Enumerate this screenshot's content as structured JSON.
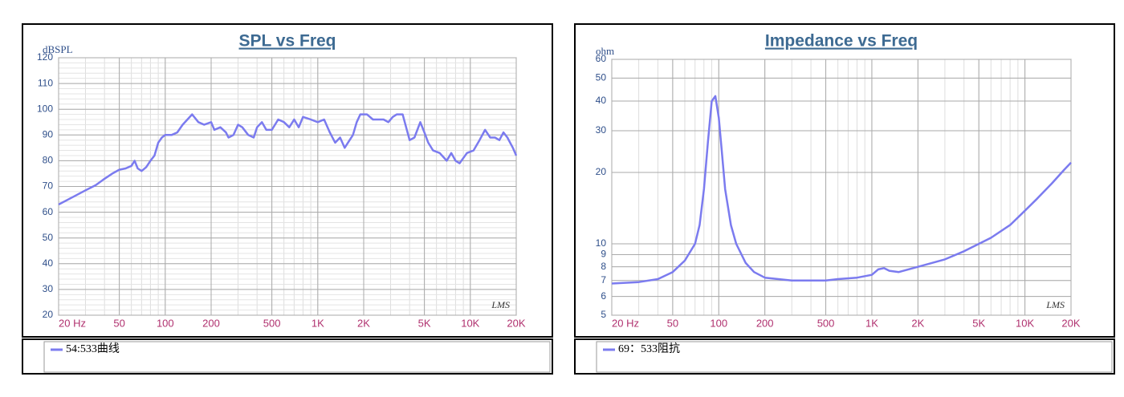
{
  "chart_data": [
    {
      "type": "line",
      "title": "SPL vs Freq",
      "ylabel": "dBSPL",
      "annotation": "LMS",
      "xlog": true,
      "ylog": false,
      "grid": true,
      "xlim": [
        20,
        20000
      ],
      "xticks": [
        {
          "value": 20,
          "label": "20 Hz"
        },
        50,
        100,
        200,
        500,
        {
          "value": 1000,
          "label": "1K"
        },
        {
          "value": 2000,
          "label": "2K"
        },
        {
          "value": 5000,
          "label": "5K"
        },
        {
          "value": 10000,
          "label": "10K"
        },
        {
          "value": 20000,
          "label": "20K"
        }
      ],
      "ylim": [
        20,
        120
      ],
      "yticks": [
        20,
        30,
        40,
        50,
        60,
        70,
        80,
        90,
        100,
        110,
        120
      ],
      "x": [
        20,
        25,
        30,
        35,
        40,
        45,
        50,
        55,
        60,
        63,
        66,
        70,
        75,
        80,
        85,
        90,
        95,
        100,
        110,
        120,
        130,
        150,
        165,
        180,
        200,
        210,
        230,
        250,
        260,
        280,
        300,
        320,
        350,
        380,
        400,
        430,
        460,
        500,
        550,
        600,
        650,
        700,
        750,
        800,
        900,
        1000,
        1100,
        1200,
        1300,
        1400,
        1500,
        1700,
        1800,
        1900,
        2100,
        2300,
        2500,
        2700,
        2900,
        3100,
        3300,
        3600,
        4000,
        4300,
        4700,
        5000,
        5300,
        5700,
        6300,
        7000,
        7500,
        8000,
        8500,
        9500,
        10500,
        11500,
        12500,
        13500,
        14500,
        15500,
        16500,
        17500,
        19000,
        20000
      ],
      "series": [
        {
          "name": "54:533曲线",
          "color": "#7b7bef",
          "values": [
            63,
            66,
            68.5,
            70.5,
            73,
            75,
            76.5,
            77,
            78,
            80,
            77,
            76,
            77.5,
            80,
            82,
            87,
            89,
            90,
            90,
            91,
            94,
            98,
            95,
            94,
            95,
            92,
            93,
            91,
            89,
            90,
            94,
            93,
            90,
            89,
            93,
            95,
            92,
            92,
            96,
            95,
            93,
            96,
            93,
            97,
            96,
            95,
            96,
            91,
            87,
            89,
            85,
            90,
            95,
            98,
            98,
            96,
            96,
            96,
            95,
            97,
            98,
            98,
            88,
            89,
            95,
            91,
            87,
            84,
            83,
            80,
            83,
            80,
            79,
            83,
            84,
            88,
            92,
            89,
            89,
            88,
            91,
            89,
            85,
            82
          ]
        }
      ]
    },
    {
      "type": "line",
      "title": "Impedance vs Freq",
      "ylabel": "ohm",
      "annotation": "LMS",
      "xlog": true,
      "ylog": true,
      "grid": true,
      "xlim": [
        20,
        20000
      ],
      "xticks": [
        {
          "value": 20,
          "label": "20 Hz"
        },
        50,
        100,
        200,
        500,
        {
          "value": 1000,
          "label": "1K"
        },
        {
          "value": 2000,
          "label": "2K"
        },
        {
          "value": 5000,
          "label": "5K"
        },
        {
          "value": 10000,
          "label": "10K"
        },
        {
          "value": 20000,
          "label": "20K"
        }
      ],
      "ylim": [
        5,
        60
      ],
      "yticks": [
        5,
        6,
        7,
        8,
        9,
        10,
        20,
        30,
        40,
        50,
        60
      ],
      "x": [
        20,
        30,
        40,
        50,
        60,
        70,
        75,
        80,
        85,
        90,
        95,
        100,
        105,
        110,
        120,
        130,
        150,
        170,
        200,
        300,
        500,
        600,
        800,
        1000,
        1100,
        1200,
        1300,
        1500,
        2000,
        3000,
        4000,
        6000,
        8000,
        10000,
        12000,
        15000,
        18000,
        20000
      ],
      "series": [
        {
          "name": "69：533阻抗",
          "color": "#7b7bef",
          "values": [
            6.8,
            6.9,
            7.1,
            7.6,
            8.5,
            10,
            12,
            17,
            27,
            40,
            42,
            34,
            24,
            17,
            12,
            10,
            8.3,
            7.6,
            7.2,
            7.0,
            7.0,
            7.1,
            7.2,
            7.4,
            7.8,
            7.9,
            7.7,
            7.6,
            8.0,
            8.6,
            9.3,
            10.6,
            12.0,
            13.8,
            15.5,
            18.0,
            20.5,
            22.0
          ]
        }
      ]
    }
  ]
}
